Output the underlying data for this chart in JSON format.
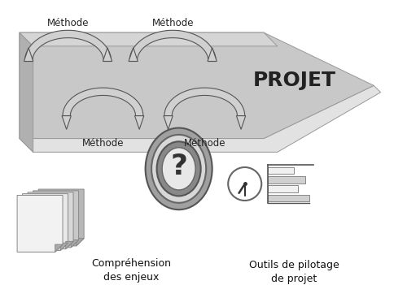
{
  "bg_color": "#ffffff",
  "label_comprehension": "Compréhension\ndes enjeux",
  "label_outils": "Outils de pilotage\nde projet",
  "label_projet": "PROJET",
  "label_methode": "Méthode",
  "arrow_gray": "#888888",
  "arrow_dark": "#444444",
  "arrow_light": "#cccccc",
  "proj_body": "#c8c8c8",
  "proj_top": "#e2e2e2",
  "proj_side": "#b0b0b0",
  "swoosh_fill": "#cccccc",
  "swoosh_edge": "#555555",
  "doc_colors": [
    "#b8b8b8",
    "#c8c8c8",
    "#d8d8d8",
    "#e8e8e8",
    "#f2f2f2"
  ]
}
